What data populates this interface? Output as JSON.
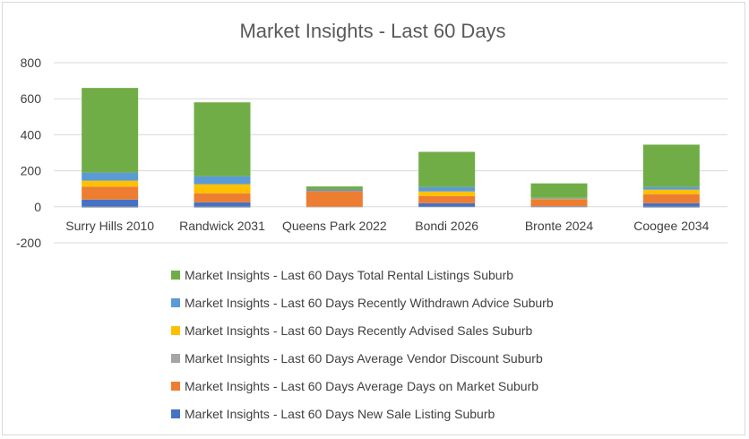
{
  "chart_data": {
    "type": "bar",
    "stacked": true,
    "title": "Market Insights - Last 60 Days",
    "xlabel": "",
    "ylabel": "",
    "ylim": [
      -200,
      800
    ],
    "yticks": [
      -200,
      0,
      200,
      400,
      600,
      800
    ],
    "grid": true,
    "legend_position": "bottom",
    "categories": [
      "Surry Hills 2010",
      "Randwick 2031",
      "Queens Park 2022",
      "Bondi 2026",
      "Bronte 2024",
      "Coogee 2034"
    ],
    "series": [
      {
        "name": "Market Insights - Last 60 Days New Sale Listing Suburb",
        "color": "#4472c4",
        "values": [
          40,
          25,
          0,
          20,
          3,
          20
        ]
      },
      {
        "name": "Market Insights - Last 60 Days Average Days on Market Suburb",
        "color": "#ed7d31",
        "values": [
          72,
          50,
          88,
          40,
          40,
          50
        ]
      },
      {
        "name": "Market Insights - Last 60 Days Average Vendor Discount Suburb",
        "color": "#a5a5a5",
        "values": [
          -5,
          -5,
          -3,
          -2,
          -3,
          -5
        ]
      },
      {
        "name": "Market Insights - Last 60 Days Recently Advised Sales Suburb",
        "color": "#ffc000",
        "values": [
          33,
          50,
          0,
          25,
          2,
          25
        ]
      },
      {
        "name": "Market Insights - Last 60 Days Recently Withdrawn Advice Suburb",
        "color": "#5b9bd5",
        "values": [
          45,
          45,
          8,
          25,
          5,
          15
        ]
      },
      {
        "name": "Market Insights - Last 60 Days Total Rental Listings Suburb",
        "color": "#70ad47",
        "values": [
          470,
          410,
          17,
          195,
          80,
          235
        ]
      }
    ]
  }
}
